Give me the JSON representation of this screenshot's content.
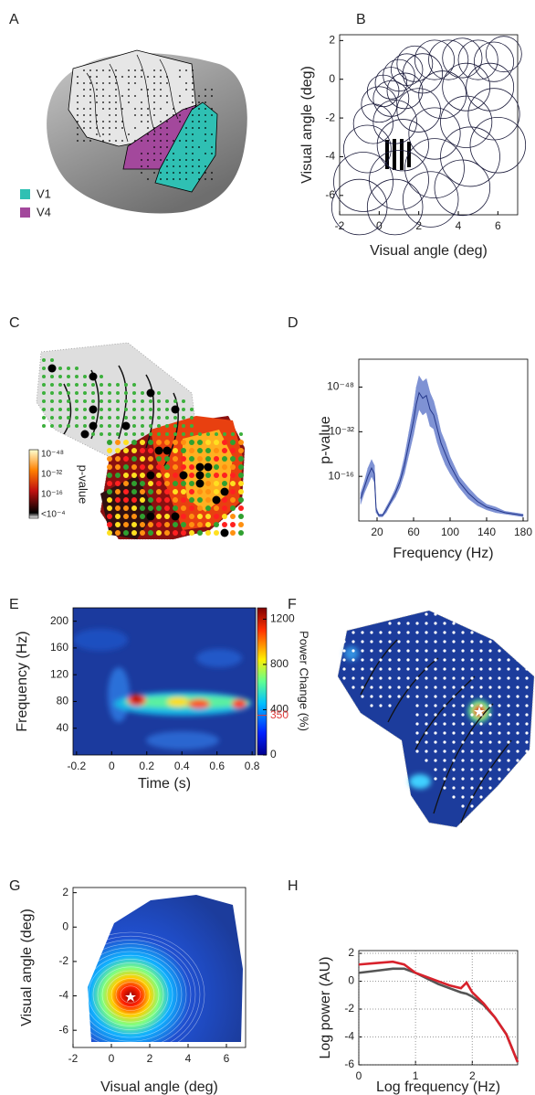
{
  "chart_data": [
    {
      "panel": "A",
      "type": "image",
      "legend": [
        {
          "name": "V1",
          "color": "#2fc0b3"
        },
        {
          "name": "V4",
          "color": "#a3489c"
        }
      ]
    },
    {
      "panel": "B",
      "type": "scatter",
      "xlabel": "Visual angle (deg)",
      "ylabel": "Visual angle (deg)",
      "xlim": [
        -2,
        7
      ],
      "ylim": [
        -7,
        2.3
      ],
      "xticks": [
        -2,
        0,
        2,
        4,
        6
      ],
      "yticks": [
        -6,
        -4,
        -2,
        0,
        2
      ],
      "x": [
        0.2,
        0.6,
        1.0,
        1.4,
        1.8,
        0.0,
        0.6,
        1.3,
        2.2,
        2.8,
        3.5,
        4.2,
        5.0,
        5.8,
        6.3,
        -0.3,
        0.8,
        2.0,
        3.2,
        4.4,
        5.6,
        -0.6,
        1.2,
        2.8,
        4.4,
        5.8,
        -0.8,
        1.0,
        2.8,
        4.6,
        6.0,
        -1.0,
        0.8,
        2.6,
        4.2
      ],
      "y": [
        -0.6,
        -0.2,
        0.2,
        0.5,
        0.8,
        -1.3,
        -1.0,
        -0.6,
        0.3,
        1.0,
        1.0,
        1.1,
        1.0,
        0.9,
        1.3,
        -2.3,
        -2.2,
        -1.6,
        -0.8,
        -0.4,
        -0.4,
        -3.6,
        -3.4,
        -2.8,
        -2.2,
        -1.8,
        -5.3,
        -5.2,
        -4.6,
        -4.0,
        -3.4,
        -6.6,
        -6.6,
        -6.2,
        -5.6
      ],
      "size": [
        0.8,
        0.8,
        0.8,
        0.8,
        0.9,
        0.9,
        0.9,
        0.9,
        1.0,
        1.0,
        1.0,
        1.0,
        1.0,
        1.0,
        0.9,
        1.0,
        1.1,
        1.1,
        1.2,
        1.2,
        1.2,
        1.2,
        1.3,
        1.3,
        1.3,
        1.3,
        1.5,
        1.5,
        1.5,
        1.5,
        1.4,
        1.4,
        1.4,
        1.4,
        1.4
      ],
      "color": "#1a1a3a"
    },
    {
      "panel": "C",
      "type": "image",
      "colorbar_label": "p-value",
      "cticks": [
        "10⁻⁴⁸",
        "10⁻³²",
        "10⁻¹⁶",
        "<10⁻⁴"
      ]
    },
    {
      "panel": "D",
      "type": "line",
      "xlabel": "Frequency (Hz)",
      "ylabel": "p-value",
      "xlim": [
        0,
        185
      ],
      "ylim": [
        0,
        58
      ],
      "xticks": [
        20,
        60,
        100,
        140,
        180
      ],
      "yticks": [
        {
          "value": 16,
          "label": "10⁻¹⁶"
        },
        {
          "value": 32,
          "label": "10⁻³²"
        },
        {
          "value": 48,
          "label": "10⁻⁴⁸"
        }
      ],
      "x": [
        2,
        6,
        10,
        14,
        17,
        19,
        22,
        26,
        30,
        35,
        40,
        45,
        50,
        55,
        60,
        63,
        66,
        70,
        74,
        78,
        82,
        86,
        90,
        95,
        100,
        110,
        120,
        130,
        140,
        150,
        160,
        170,
        180
      ],
      "values": [
        8,
        12,
        16,
        19,
        17,
        4,
        2,
        2,
        4,
        7,
        10,
        14,
        20,
        28,
        36,
        42,
        46,
        44,
        45,
        40,
        38,
        33,
        28,
        24,
        20,
        14,
        10,
        7,
        5,
        4,
        3,
        2.5,
        2
      ],
      "err": [
        2,
        2,
        3,
        3,
        3,
        1,
        0.5,
        0.5,
        1,
        1,
        1.5,
        2,
        3,
        4,
        5,
        6,
        6,
        6,
        6,
        6,
        5,
        5,
        4,
        4,
        3,
        2,
        2,
        1.5,
        1,
        1,
        0.5,
        0.5,
        0.5
      ],
      "color": "#24378a",
      "band_color": "#7f92d4"
    },
    {
      "panel": "E",
      "type": "heatmap",
      "xlabel": "Time (s)",
      "ylabel": "Frequency (Hz)",
      "xlim": [
        -0.22,
        0.82
      ],
      "ylim": [
        0,
        220
      ],
      "xticks": [
        -0.2,
        0,
        0.2,
        0.4,
        0.6,
        0.8
      ],
      "yticks": [
        40,
        80,
        120,
        160,
        200
      ],
      "clim": [
        0,
        1300
      ],
      "cticks": [
        0,
        400,
        800,
        1200
      ],
      "colorbar_label": "Power Change (%)",
      "threshold": 350,
      "threshold_color": "#e03a3a"
    },
    {
      "panel": "F",
      "type": "image"
    },
    {
      "panel": "G",
      "type": "contour",
      "xlabel": "Visual angle (deg)",
      "ylabel": "Visual angle (deg)",
      "xlim": [
        -2,
        7
      ],
      "ylim": [
        -7,
        2.3
      ],
      "xticks": [
        -2,
        0,
        2,
        4,
        6
      ],
      "yticks": [
        -6,
        -4,
        -2,
        0,
        2
      ]
    },
    {
      "panel": "H",
      "type": "line",
      "xlabel": "Log frequency (Hz)",
      "ylabel": "Log power (AU)",
      "xlim": [
        0,
        2.8
      ],
      "ylim": [
        -6,
        2.2
      ],
      "xticks": [
        0,
        1,
        2
      ],
      "yticks": [
        -6,
        -4,
        -2,
        0,
        2
      ],
      "grid": true,
      "x": [
        0,
        0.3,
        0.6,
        0.8,
        1.0,
        1.2,
        1.4,
        1.6,
        1.8,
        1.9,
        2.0,
        2.2,
        2.4,
        2.6,
        2.8
      ],
      "series": [
        {
          "color": "#555555",
          "values": [
            0.6,
            0.75,
            0.9,
            0.9,
            0.6,
            0.2,
            -0.2,
            -0.5,
            -0.8,
            -0.9,
            -1.1,
            -1.7,
            -2.6,
            -3.8,
            -5.8
          ]
        },
        {
          "color": "#d8222c",
          "values": [
            1.2,
            1.3,
            1.4,
            1.2,
            0.6,
            0.3,
            0.0,
            -0.3,
            -0.5,
            -0.1,
            -0.8,
            -1.6,
            -2.6,
            -3.8,
            -5.8
          ]
        }
      ]
    }
  ]
}
